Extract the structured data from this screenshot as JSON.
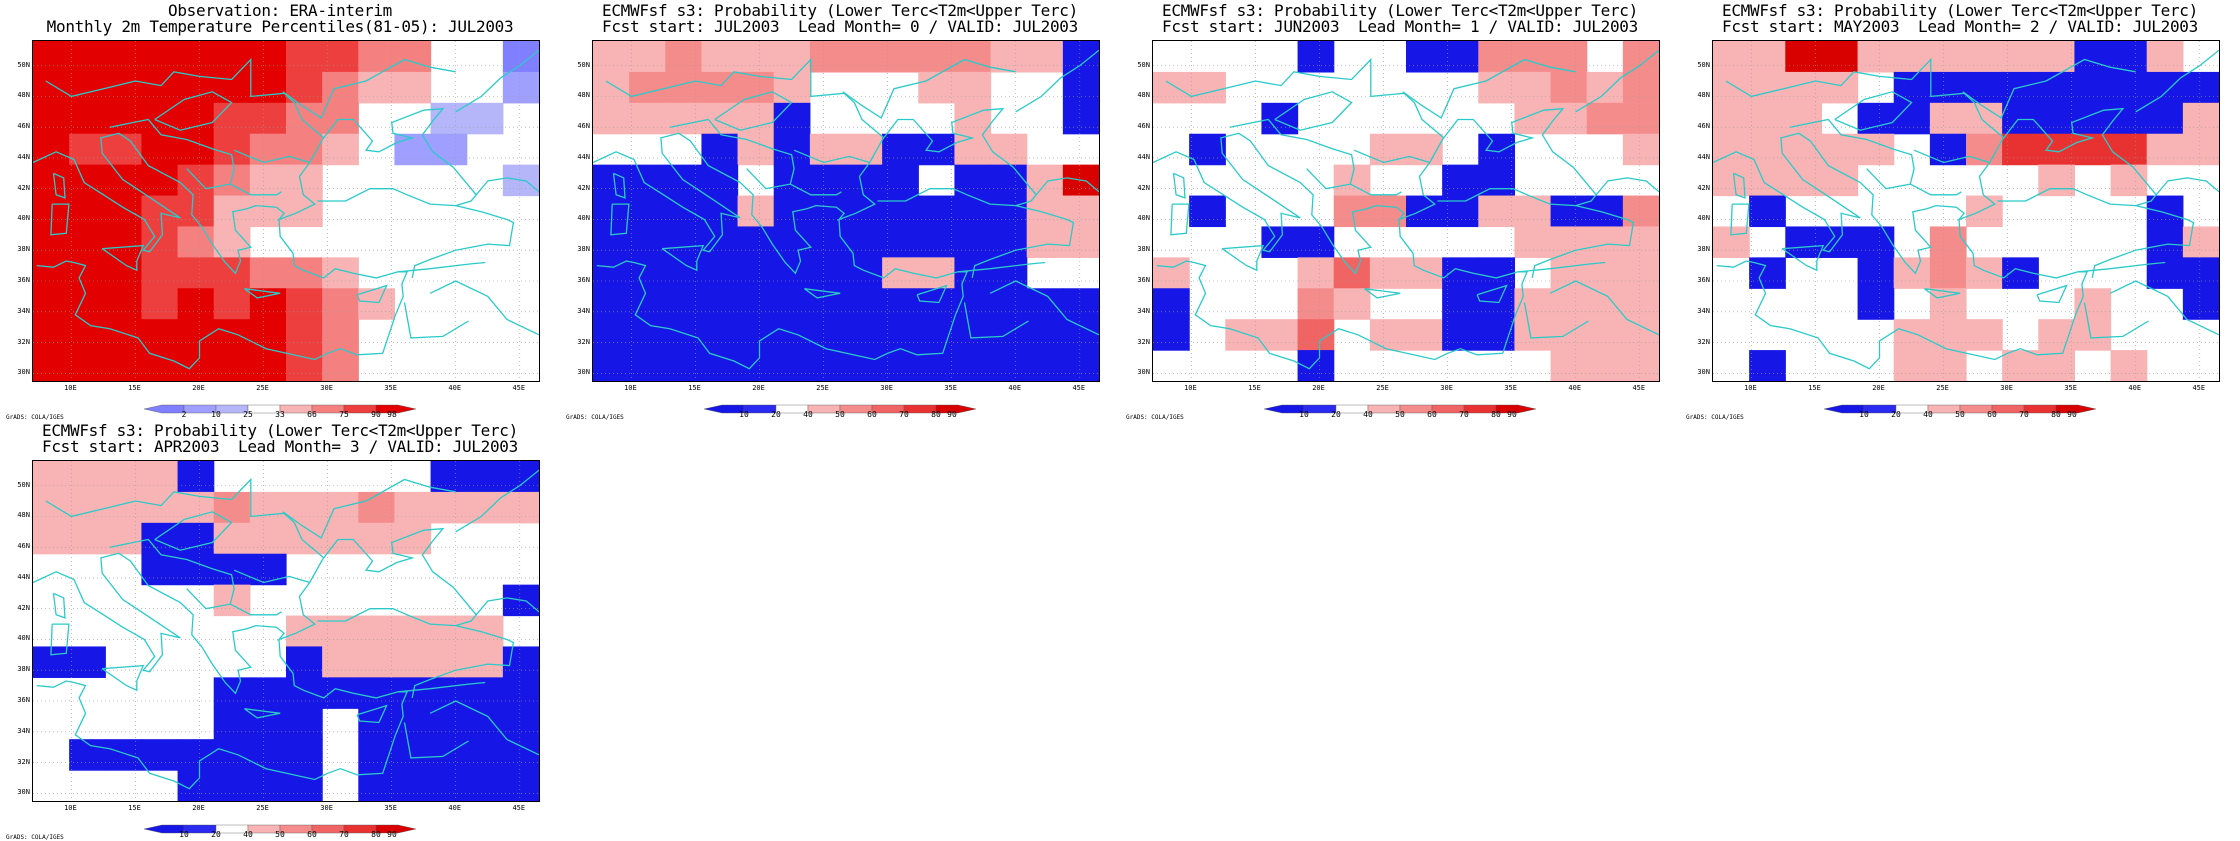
{
  "palette": {
    "obs": [
      "#7F7FFF",
      "#9F9FFF",
      "#B5B5F9",
      "#FFFFFF",
      "#F8B4B4",
      "#F58080",
      "#EE3F3F",
      "#E20000"
    ],
    "prob": [
      "#1616E6",
      "#2A2AF0",
      "#FFFFFF",
      "#F8B4B4",
      "#F58C8C",
      "#F06464",
      "#E83232",
      "#D90000"
    ],
    "coast": "#2BCACA"
  },
  "axes": {
    "lat_labels": [
      "50N",
      "48N",
      "46N",
      "44N",
      "42N",
      "40N",
      "38N",
      "36N",
      "34N",
      "32N",
      "30N"
    ],
    "lon_labels": [
      "10E",
      "15E",
      "20E",
      "25E",
      "30E",
      "35E",
      "40E",
      "45E"
    ]
  },
  "credit": "GrADS: COLA/IGES",
  "panels": [
    {
      "title1": "Observation: ERA-interim",
      "title2": "Monthly 2m Temperature Percentiles(81-05): JUL2003",
      "colorbar": "obs",
      "cb_labels": [
        "2",
        "10",
        "25",
        "33",
        "66",
        "75",
        "90",
        "98"
      ],
      "grid": [
        "77777776655330",
        "77777776544331",
        "77777665533223",
        "76677655431133",
        "77776544333332",
        "77766444333333",
        "77765433333333",
        "77766655433333",
        "77767676543333",
        "77777776533333",
        "77777776533333"
      ]
    },
    {
      "title1": "ECMWFsf s3: Probability (Lower Terc<T2m<Upper Terc)",
      "title2": "Fcst start: JUL2003  Lead Month= 0 / VALID: JUL2003",
      "colorbar": "prob",
      "cb_labels": [
        "10",
        "20",
        "40",
        "50",
        "60",
        "70",
        "80",
        "90"
      ],
      "grid": [
        "33433344444330",
        "34444322233220",
        "33333022223220",
        "22203033003322",
        "00002000020037",
        "00003000000033",
        "00000000000033",
        "00000000330022",
        "00000000000000",
        "00000000000000",
        "00000000000000"
      ]
    },
    {
      "title1": "ECMWFsf s3: Probability (Lower Terc<T2m<Upper Terc)",
      "title2": "Fcst start: JUN2003  Lead Month= 1 / VALID: JUL2003",
      "colorbar": "prob",
      "cb_labels": [
        "10",
        "20",
        "40",
        "50",
        "60",
        "70",
        "80",
        "90"
      ],
      "grid": [
        "22220220044424",
        "33222222233434",
        "22202222223344",
        "20222233202223",
        "22222322002222",
        "20222440033004",
        "22200222223333",
        "32223533002333",
        "02224322003333",
        "02335233003333",
        "22220222222333"
      ]
    },
    {
      "title1": "ECMWFsf s3: Probability (Lower Terc<T2m<Upper Terc)",
      "title2": "Fcst start: MAY2003  Lead Month= 2 / VALID: JUL2003",
      "colorbar": "prob",
      "cb_labels": [
        "10",
        "20",
        "40",
        "50",
        "60",
        "70",
        "80",
        "90"
      ],
      "grid": [
        "33773333330032",
        "33332000000000",
        "33320033000003",
        "33333204666633",
        "33332222232322",
        "20222223222202",
        "32000242222203",
        "20220343022200",
        "22220232223220",
        "22222333233222",
        "20222332332322"
      ]
    },
    {
      "title1": "ECMWFsf s3: Probability (Lower Terc<T2m<Upper Terc)",
      "title2": "Fcst start: APR2003  Lead Month= 3 / VALID: JUL2003",
      "colorbar": "prob",
      "cb_labels": [
        "10",
        "20",
        "40",
        "50",
        "60",
        "70",
        "80",
        "90"
      ],
      "grid": [
        "33330222222000",
        "33333433343333",
        "33300333333222",
        "22200002222222",
        "22222322222220",
        "22222223333332",
        "00222220333330",
        "22222000000000",
        "22222000200000",
        "20000000200000",
        "22220000200000"
      ]
    }
  ]
}
